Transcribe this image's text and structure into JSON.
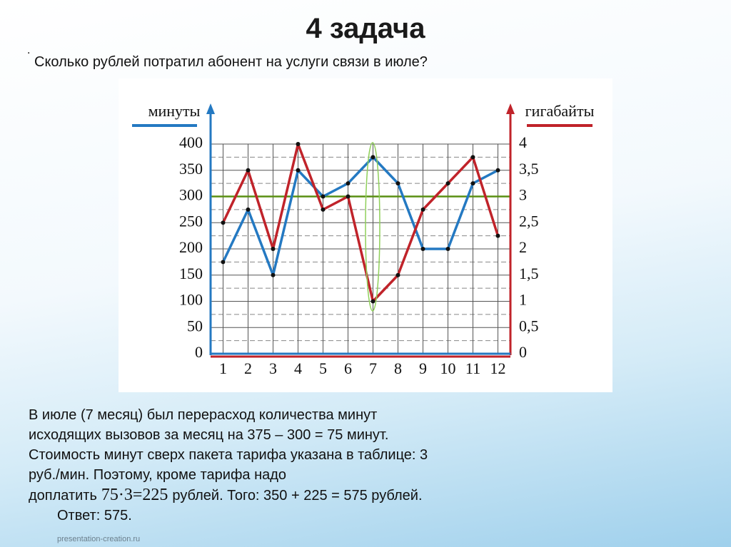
{
  "title": "4 задача",
  "bullet": ".",
  "question": "Сколько рублей потратил абонент на услуги связи в июле?",
  "chart_data": {
    "type": "line",
    "x": [
      1,
      2,
      3,
      4,
      5,
      6,
      7,
      8,
      9,
      10,
      11,
      12
    ],
    "xlim": [
      0.5,
      12.5
    ],
    "xticks": [
      1,
      2,
      3,
      4,
      5,
      6,
      7,
      8,
      9,
      10,
      11,
      12
    ],
    "ylim": [
      0,
      400
    ],
    "yticks": [
      0,
      50,
      100,
      150,
      200,
      250,
      300,
      350,
      400
    ],
    "y2lim": [
      0,
      4
    ],
    "y2ticks": [
      0,
      {
        "value": 0.5,
        "label": "0,5"
      },
      1,
      {
        "value": 1.5,
        "label": "1,5"
      },
      2,
      {
        "value": 2.5,
        "label": "2,5"
      },
      3,
      {
        "value": 3.5,
        "label": "3,5"
      },
      4
    ],
    "grid": true,
    "reference_line": {
      "value": 300,
      "color": "#5a8f12"
    },
    "series": [
      {
        "name": "минуты",
        "color": "#2479c2",
        "values": [
          175,
          275,
          150,
          350,
          300,
          325,
          375,
          325,
          200,
          200,
          325,
          350
        ]
      },
      {
        "name": "гигабайты",
        "color": "#c0232a",
        "axis": "y2",
        "values": [
          2.5,
          3.5,
          2,
          4,
          2.75,
          3,
          1,
          1.5,
          2.75,
          3.25,
          3.75,
          2.25
        ]
      }
    ]
  },
  "explanation": {
    "text_before": "В июле (7 месяц) был перерасход количества минут исходящих вызовов за месяц на 375 – 300 = 75 минут. Стоимость минут сверх пакета тарифа указана в таблице: 3 руб./мин. Поэтому, кроме тарифа надо доплатить",
    "formula": "75·3=225",
    "text_after": "рублей. Того: 350 + 225 = 575 рублей."
  },
  "answer": "Ответ: 575.",
  "footer": "presentation-creation.ru"
}
